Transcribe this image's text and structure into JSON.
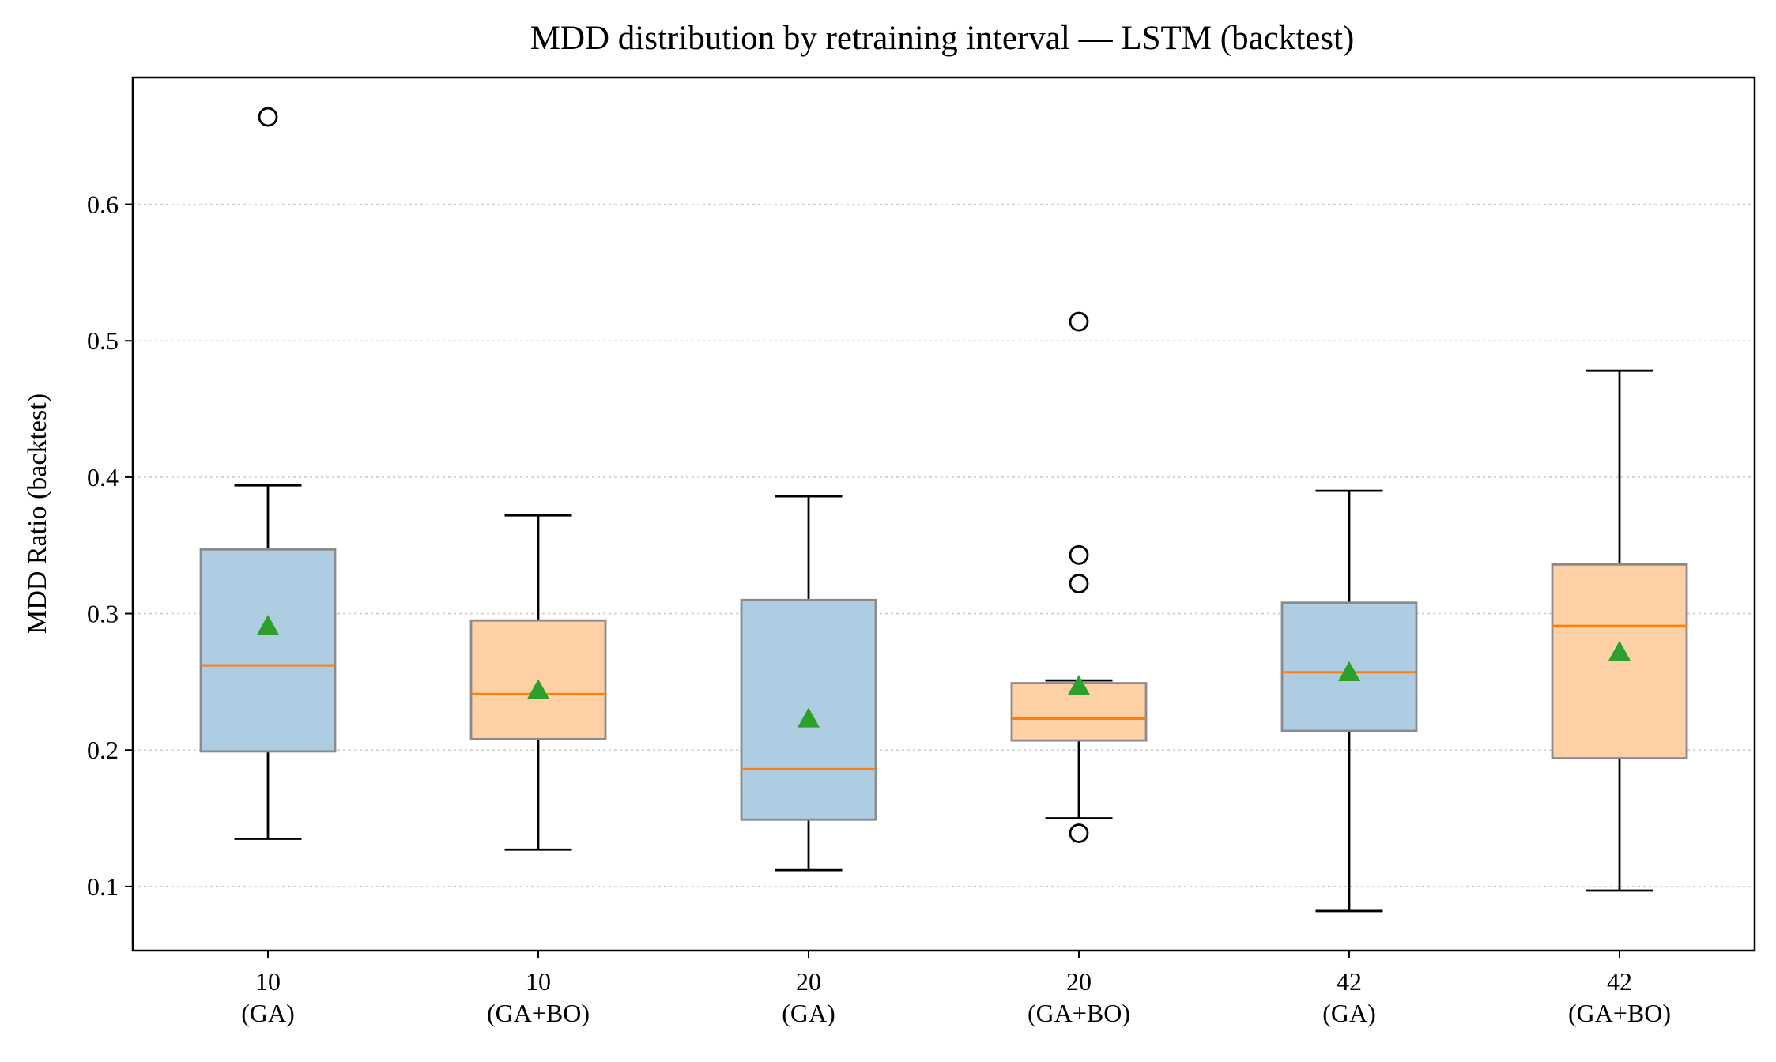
{
  "chart_data": {
    "type": "box",
    "title": "MDD distribution by retraining interval — LSTM (backtest)",
    "xlabel": "",
    "ylabel": "MDD Ratio (backtest)",
    "ylim": [
      0.053,
      0.693
    ],
    "yticks": [
      0.1,
      0.2,
      0.3,
      0.4,
      0.5,
      0.6
    ],
    "grid": "y-axis dotted",
    "categories": [
      [
        "10",
        "(GA)"
      ],
      [
        "10",
        "(GA+BO)"
      ],
      [
        "20",
        "(GA)"
      ],
      [
        "20",
        "(GA+BO)"
      ],
      [
        "42",
        "(GA)"
      ],
      [
        "42",
        "(GA+BO)"
      ]
    ],
    "boxes": [
      {
        "whisker_low": 0.135,
        "q1": 0.199,
        "median": 0.262,
        "q3": 0.347,
        "whisker_high": 0.394,
        "mean": 0.291,
        "fliers": [
          0.664
        ],
        "fill": "#aecde3"
      },
      {
        "whisker_low": 0.127,
        "q1": 0.208,
        "median": 0.241,
        "q3": 0.295,
        "whisker_high": 0.372,
        "mean": 0.244,
        "fliers": [],
        "fill": "#fdd0a6"
      },
      {
        "whisker_low": 0.112,
        "q1": 0.149,
        "median": 0.186,
        "q3": 0.31,
        "whisker_high": 0.386,
        "mean": 0.223,
        "fliers": [],
        "fill": "#aecde3"
      },
      {
        "whisker_low": 0.15,
        "q1": 0.207,
        "median": 0.223,
        "q3": 0.249,
        "whisker_high": 0.251,
        "mean": 0.247,
        "fliers": [
          0.514,
          0.343,
          0.322,
          0.139
        ],
        "fill": "#fdd0a6"
      },
      {
        "whisker_low": 0.082,
        "q1": 0.214,
        "median": 0.257,
        "q3": 0.308,
        "whisker_high": 0.39,
        "mean": 0.257,
        "fliers": [],
        "fill": "#aecde3"
      },
      {
        "whisker_low": 0.097,
        "q1": 0.194,
        "median": 0.291,
        "q3": 0.336,
        "whisker_high": 0.478,
        "mean": 0.272,
        "fliers": [],
        "fill": "#fdd0a6"
      }
    ],
    "colors": {
      "median": "#ff7f0e",
      "mean_marker": "#2ca02c",
      "box_edge": "#8a8a8a"
    }
  }
}
